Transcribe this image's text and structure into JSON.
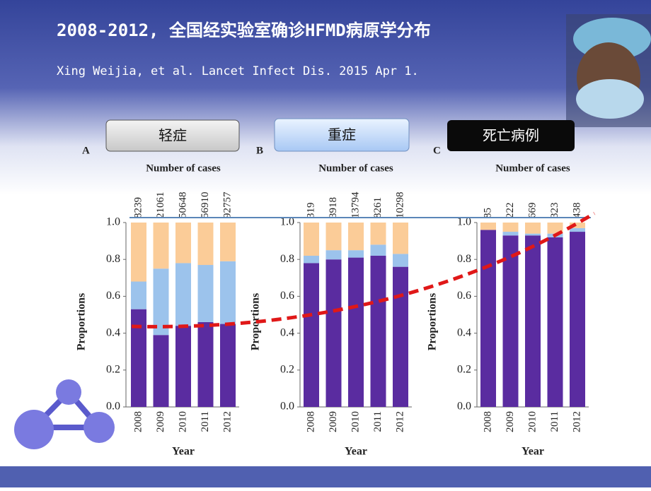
{
  "slide": {
    "title": "2008-2012, 全国经实验室确诊HFMD病原学分布",
    "citation": "Xing Weijia, et al. Lancet Infect Dis. 2015 Apr 1.",
    "buttons": [
      "轻症",
      "重症",
      "死亡病例"
    ]
  },
  "chart_data": [
    {
      "type": "bar",
      "stacked": true,
      "panel": "A",
      "subtitle": "Number of cases",
      "xlabel": "Year",
      "ylabel": "Proportions",
      "categories": [
        "2008",
        "2009",
        "2010",
        "2011",
        "2012"
      ],
      "counts": [
        "8239",
        "21061",
        "50648",
        "56910",
        "92757"
      ],
      "series": [
        {
          "color": "#5a2ca0",
          "values": [
            0.53,
            0.39,
            0.44,
            0.46,
            0.45
          ]
        },
        {
          "color": "#9cc3ec",
          "values": [
            0.15,
            0.36,
            0.34,
            0.31,
            0.34
          ]
        },
        {
          "color": "#fbcc98",
          "values": [
            0.32,
            0.25,
            0.22,
            0.23,
            0.21
          ]
        }
      ],
      "ylim": [
        0,
        1
      ],
      "yticks": [
        {
          "value": 0,
          "label": "0.0"
        },
        0.2,
        0.4,
        0.6,
        0.8,
        {
          "value": 1,
          "label": "1.0"
        }
      ]
    },
    {
      "type": "bar",
      "stacked": true,
      "panel": "B",
      "subtitle": "Number of cases",
      "xlabel": "Year",
      "ylabel": "Proportions",
      "categories": [
        "2008",
        "2009",
        "2010",
        "2011",
        "2012"
      ],
      "counts": [
        "319",
        "3918",
        "13794",
        "8261",
        "10298"
      ],
      "series": [
        {
          "color": "#5a2ca0",
          "values": [
            0.78,
            0.8,
            0.81,
            0.82,
            0.76
          ]
        },
        {
          "color": "#9cc3ec",
          "values": [
            0.04,
            0.05,
            0.04,
            0.06,
            0.07
          ]
        },
        {
          "color": "#fbcc98",
          "values": [
            0.18,
            0.15,
            0.15,
            0.12,
            0.17
          ]
        }
      ],
      "ylim": [
        0,
        1
      ],
      "yticks": [
        {
          "value": 0,
          "label": "0.0"
        },
        0.2,
        0.4,
        0.6,
        0.8,
        {
          "value": 1,
          "label": "1.0"
        }
      ]
    },
    {
      "type": "bar",
      "stacked": true,
      "panel": "C",
      "subtitle": "Number of cases",
      "xlabel": "Year",
      "ylabel": "Proportions",
      "categories": [
        "2008",
        "2009",
        "2010",
        "2011",
        "2012"
      ],
      "counts": [
        "85",
        "222",
        "669",
        "323",
        "438"
      ],
      "series": [
        {
          "color": "#5a2ca0",
          "values": [
            0.96,
            0.93,
            0.93,
            0.92,
            0.95
          ]
        },
        {
          "color": "#9cc3ec",
          "values": [
            0.0,
            0.02,
            0.01,
            0.02,
            0.02
          ]
        },
        {
          "color": "#fbcc98",
          "values": [
            0.04,
            0.05,
            0.06,
            0.06,
            0.03
          ]
        }
      ],
      "ylim": [
        0,
        1
      ],
      "yticks": [
        {
          "value": 0,
          "label": "0.0"
        },
        0.2,
        0.4,
        0.6,
        0.8,
        {
          "value": 1,
          "label": "1.0"
        }
      ]
    }
  ]
}
